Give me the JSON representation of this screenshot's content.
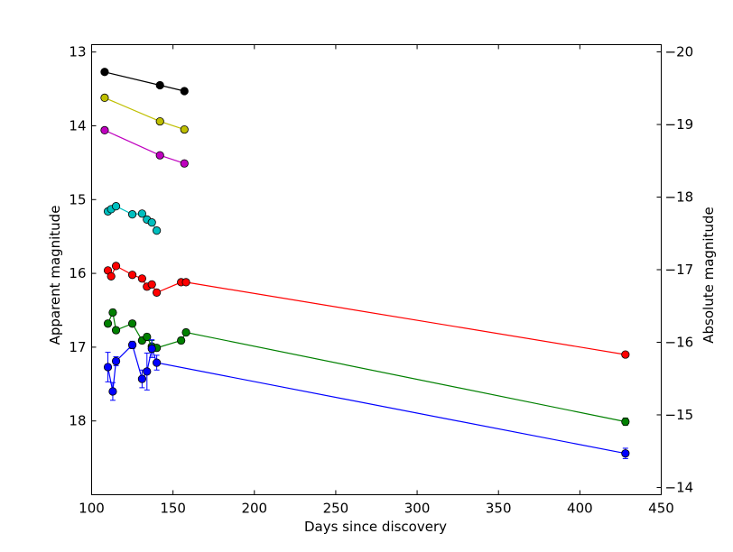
{
  "chart_data": {
    "type": "scatter",
    "xlabel": "Days since discovery",
    "ylabel": "Apparent magnitude",
    "ylabel_right": "Absolute magnitude",
    "xlim": [
      100,
      450
    ],
    "ylim": [
      19,
      12.9
    ],
    "ylim_right": [
      -13.9,
      -20.1
    ],
    "y_inverted": true,
    "grid": false,
    "legend": "none",
    "x_ticks": [
      "100",
      "150",
      "200",
      "250",
      "300",
      "350",
      "400",
      "450"
    ],
    "y_ticks": [
      "13",
      "14",
      "15",
      "16",
      "17",
      "18"
    ],
    "y_ticks_right": [
      "−20",
      "−19",
      "−18",
      "−17",
      "−16",
      "−15",
      "−14"
    ],
    "series": [
      {
        "color": "#000000",
        "x": [
          108,
          142,
          157
        ],
        "y": [
          13.27,
          13.45,
          13.53
        ]
      },
      {
        "color": "#bfbf00",
        "x": [
          108,
          142,
          157
        ],
        "y": [
          13.62,
          13.94,
          14.05
        ]
      },
      {
        "color": "#bf00bf",
        "x": [
          108,
          142,
          157
        ],
        "y": [
          14.06,
          14.4,
          14.51
        ]
      },
      {
        "color": "#00bfbf",
        "x": [
          110,
          112,
          115,
          125,
          131,
          134,
          137,
          140
        ],
        "y": [
          15.16,
          15.13,
          15.09,
          15.2,
          15.19,
          15.27,
          15.31,
          15.42
        ]
      },
      {
        "color": "#ff0000",
        "x": [
          110,
          112,
          115,
          125,
          131,
          134,
          137,
          140,
          155,
          158,
          428
        ],
        "y": [
          15.96,
          16.04,
          15.9,
          16.02,
          16.07,
          16.18,
          16.15,
          16.26,
          16.12,
          16.12,
          17.1
        ]
      },
      {
        "color": "#008000",
        "x": [
          110,
          113,
          115,
          125,
          131,
          134,
          137,
          140,
          155,
          158,
          428
        ],
        "y": [
          16.68,
          16.53,
          16.77,
          16.68,
          16.91,
          16.86,
          16.99,
          17.01,
          16.91,
          16.8,
          18.01
        ],
        "yerr": [
          0.04,
          0.04,
          0.04,
          0.04,
          0.04,
          0.04,
          0.08,
          0.04,
          0.04,
          0.04,
          0.05
        ]
      },
      {
        "color": "#0000ff",
        "x": [
          110,
          113,
          115,
          125,
          131,
          134,
          137,
          140,
          428
        ],
        "y": [
          17.27,
          17.6,
          17.19,
          16.97,
          17.43,
          17.33,
          17.02,
          17.21,
          18.44
        ],
        "yerr": [
          0.2,
          0.12,
          0.06,
          0.05,
          0.12,
          0.25,
          0.12,
          0.1,
          0.07
        ]
      }
    ]
  }
}
